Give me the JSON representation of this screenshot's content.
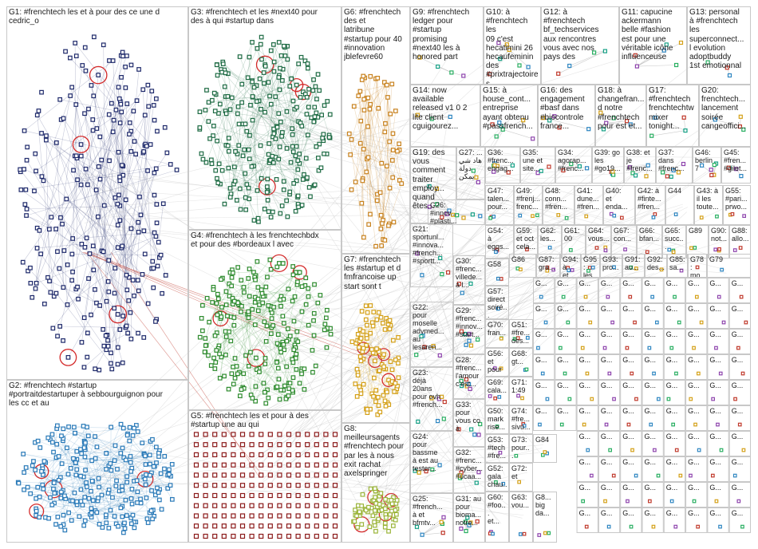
{
  "title": "",
  "colors": {
    "background": "#ffffff",
    "box_border": "#c8c8c8",
    "edge": "#b4b4b4",
    "highlight_edge": "#c0392b"
  },
  "groups": [
    {
      "id": "G1",
      "label": "G1: #frenchtech les et à pour des ce une d\ncedric_o",
      "color": "#1f2a6b"
    },
    {
      "id": "G2",
      "label": "G2: #frenchtech #startup\n#portraitdestartuper à sebbourguignon pour\nles cc et au",
      "color": "#2a7ab8"
    },
    {
      "id": "G3",
      "label": "G3: #frenchtech et les #next40 pour\ndes à qui #startup dans",
      "color": "#1e6b44"
    },
    {
      "id": "G4",
      "label": "G4: #frenchtech à les frenchtechbdx\net pour des #bordeaux l avec",
      "color": "#2e8b2e"
    },
    {
      "id": "G5",
      "label": "G5: #frenchtech les et pour à des\n#startup une au qui",
      "color": "#8b1a1a"
    },
    {
      "id": "G6",
      "label": "G6: #frenchtech\ndes et\nlatribune\n#startup pour 40\n#innovation\njblefevre60",
      "color": "#c8821e"
    },
    {
      "id": "G7",
      "label": "G7: #frenchtech\nles #startup et d\nfmfrancoise up\nstart sont t",
      "color": "#d4a017"
    },
    {
      "id": "G8",
      "label": "G8:\nmeilleursagents\n#frenchtech pour\npar les à nous\nexit rachat\naxelspringer",
      "color": "#9bb53a"
    },
    {
      "id": "G9",
      "label": "G9: #frenchtech\nledger pour\n#startup\npromising\n#next40 les à\nhonored part",
      "color": "#888888"
    },
    {
      "id": "G10",
      "label": "G10: à\n#frenchtech les\n09 c'est\nhecatimini 26\nhecaufeminin\ndes\n#prixtrajectoires",
      "color": "#888888"
    },
    {
      "id": "G11",
      "label": "G11: capucine\nackermann\nbelle #fashion\nest pour une\nvéritable icône\ninfluenceuse",
      "color": "#888888"
    },
    {
      "id": "G12",
      "label": "G12: à\n#frenchtech\nbf_techservices\naux rencontres\nvous avec nos\npays des",
      "color": "#888888"
    },
    {
      "id": "G13",
      "label": "G13: personal\nà #frenchtech\nles\nsuperconnect...\nl evolution\nadoptbuddy\n1st emotionnal",
      "color": "#888888"
    },
    {
      "id": "G14",
      "label": "G14: now\navailable\nreleased v1 0 2\nlite client\ncguigourez...",
      "color": "#888888"
    },
    {
      "id": "G15",
      "label": "G15: à\nhouse_cont...\nentreprise\nayant obtenu\n#passfrench...",
      "color": "#888888"
    },
    {
      "id": "G16",
      "label": "G16: des\nengagement\n#basf dans\n#biocontrole\nfrance...",
      "color": "#888888"
    },
    {
      "id": "G18",
      "label": "G18: à\nchangefran...\nd notre\n#frenchtech\npour est et...",
      "color": "#888888"
    },
    {
      "id": "G17",
      "label": "G17:\n#frenchtech\nfrenchtechtw\nmixer\ntonight...",
      "color": "#888888"
    },
    {
      "id": "G20",
      "label": "G20:\nfrenchtech...\nlancement\nsoirée\ncangeoffici...",
      "color": "#888888"
    },
    {
      "id": "G19",
      "label": "G19: des\nvous\ncomment\ntraiter\nemploy...\nquand\nêtes...",
      "color": "#888888"
    },
    {
      "id": "G27",
      "label": "G27: ...\nهاد شي\nدولة\nيمكن",
      "color": "#888888"
    },
    {
      "id": "G26",
      "label": "G26:\n#innov...\n#plasti...\n#recyc...",
      "color": "#888888"
    },
    {
      "id": "G21",
      "label": "G21:\nsportunl...\n#innova...\n#french...\n#sportt...",
      "color": "#888888"
    },
    {
      "id": "G30",
      "label": "G30:\n#frenc...\nvillede...\nà l...",
      "color": "#888888"
    },
    {
      "id": "G22",
      "label": "G22:\npour\nmoselle\nadvmed...\nau\nlesaren...",
      "color": "#888888"
    },
    {
      "id": "G29",
      "label": "G29:\n#frenc...\n#innov...\n#start...",
      "color": "#888888"
    },
    {
      "id": "G28",
      "label": "G28:\n#frenc...\nl'amour\nc'est...",
      "color": "#888888"
    },
    {
      "id": "G23",
      "label": "G23:\ndéjà\n20ans\npour ovh\n#french...",
      "color": "#888888"
    },
    {
      "id": "G33",
      "label": "G33:\npour\nvous co\nà",
      "color": "#888888"
    },
    {
      "id": "G24",
      "label": "G24:\npour\nbassme\nà est au\ntester...",
      "color": "#888888"
    },
    {
      "id": "G32",
      "label": "G32:\n#frenc...\n#cyber...\n#ucaa...",
      "color": "#888888"
    },
    {
      "id": "G25",
      "label": "G25:\n#french...\nà et\nbfmtv...",
      "color": "#888888"
    },
    {
      "id": "G31",
      "label": "G31: au\npour\nbioma...\nnotre...",
      "color": "#888888"
    },
    {
      "id": "G36",
      "label": "G36:\n#frenc...\nengag...",
      "color": "#888888"
    },
    {
      "id": "G35",
      "label": "G35:\nune et\nsite...",
      "color": "#888888"
    },
    {
      "id": "G34",
      "label": "G34:\nagorap...\n#frenc...",
      "color": "#888888"
    },
    {
      "id": "G39",
      "label": "G39: go\nles\n#go19...",
      "color": "#888888"
    },
    {
      "id": "G38",
      "label": "G38: et\nje\n#frenc...",
      "color": "#888888"
    },
    {
      "id": "G37",
      "label": "G37:\ndans\n#frenc...",
      "color": "#888888"
    },
    {
      "id": "G46",
      "label": "G46:\nberlin\n7",
      "color": "#888888"
    },
    {
      "id": "G45",
      "label": "G45:\n#fren...\n#gilet...",
      "color": "#888888"
    }
  ],
  "small_labels": [
    {
      "id": "G47",
      "text": "G47:\ntalen...\npour..."
    },
    {
      "id": "G49",
      "text": "G49:\n#frenj...\nfrenc..."
    },
    {
      "id": "G48",
      "text": "G48:\nconn...\n#fren..."
    },
    {
      "id": "G41",
      "text": "G41:\ndune...\n#fren..."
    },
    {
      "id": "G40",
      "text": "G40:\net\nenda..."
    },
    {
      "id": "G42",
      "text": "G42: à\n#finte...\n#fren..."
    },
    {
      "id": "G44",
      "text": "G44"
    },
    {
      "id": "G43",
      "text": "G43: à\nil les\ntoute..."
    },
    {
      "id": "G55",
      "text": "G55:\n#pari...\nprwo..."
    },
    {
      "id": "G54",
      "text": "G54:\nà\neggs..."
    },
    {
      "id": "G59",
      "text": "G59:\net oct\ncela..."
    },
    {
      "id": "G62",
      "text": "G62:\nles..."
    },
    {
      "id": "G61",
      "text": "G61:\n00"
    },
    {
      "id": "G64",
      "text": "G64:\nvous..."
    },
    {
      "id": "G67",
      "text": "G67:\ncon..."
    },
    {
      "id": "G66",
      "text": "G66:\nbfan..."
    },
    {
      "id": "G65",
      "text": "G65:\nsucc..."
    },
    {
      "id": "G89",
      "text": "G89"
    },
    {
      "id": "G90",
      "text": "G90:\nnot..."
    },
    {
      "id": "G88",
      "text": "G88:\nallo..."
    },
    {
      "id": "G58",
      "text": "G58"
    },
    {
      "id": "G57",
      "text": "G57:\ndirect\nsoiré..."
    },
    {
      "id": "G86",
      "text": "G86"
    },
    {
      "id": "G87",
      "text": "G87:\ngra..."
    },
    {
      "id": "G94",
      "text": "G94:\nà et..."
    },
    {
      "id": "G95",
      "text": "G95:\nles..."
    },
    {
      "id": "G93",
      "text": "G93:\npro..."
    },
    {
      "id": "G91",
      "text": "G91:\nau..."
    },
    {
      "id": "G92",
      "text": "G92:\ndes..."
    },
    {
      "id": "G85",
      "text": "G85:\nsa..."
    },
    {
      "id": "G78",
      "text": "G78:\nmo..."
    },
    {
      "id": "G79",
      "text": "G79"
    },
    {
      "id": "G70",
      "text": "G70:\nfran..."
    },
    {
      "id": "G56",
      "text": "G56:\net\npour"
    },
    {
      "id": "G69",
      "text": "G69:\ncala..."
    },
    {
      "id": "G51",
      "text": "G51:\n#fre...\ndes..."
    },
    {
      "id": "G68",
      "text": "G68:\ngt..."
    },
    {
      "id": "G50",
      "text": "G50:\nmark\nrise..."
    },
    {
      "id": "G71",
      "text": "G71:\n1:49"
    },
    {
      "id": "G53",
      "text": "G53:\n#tech\n#fre..."
    },
    {
      "id": "G74",
      "text": "G74:\n#fre...\nsivu..."
    },
    {
      "id": "G52",
      "text": "G52:\ngala\nchau..."
    },
    {
      "id": "G73",
      "text": "G73:\npour..."
    },
    {
      "id": "G72",
      "text": "G72:\net"
    },
    {
      "id": "G60",
      "text": "G60:\n#foo...\net..."
    },
    {
      "id": "G63",
      "text": "G63:\nvou..."
    },
    {
      "id": "G84",
      "text": "G84"
    },
    {
      "id": "G8x",
      "text": "G8...\nbig\nda..."
    }
  ],
  "tiny_label": "G..."
}
